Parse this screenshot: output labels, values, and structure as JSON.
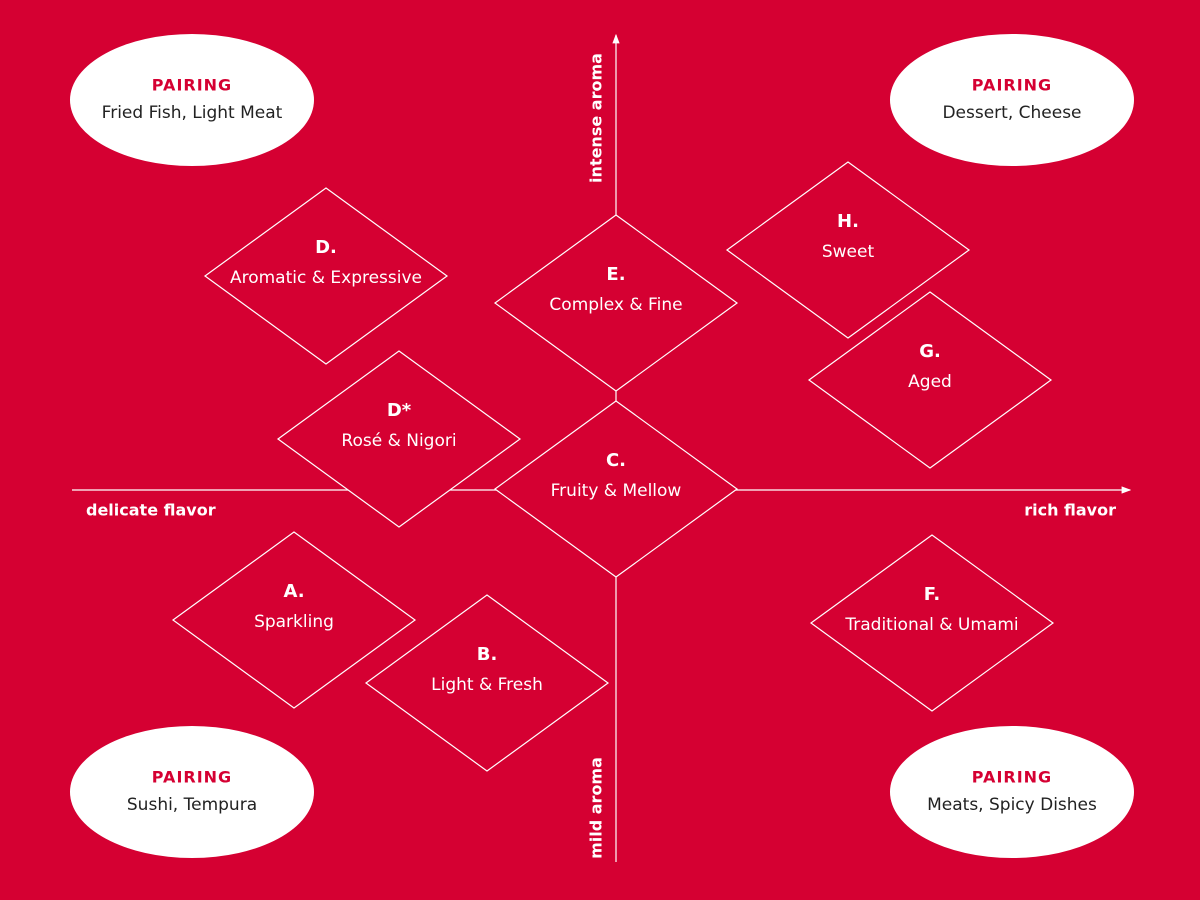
{
  "axes": {
    "top": "intense aroma",
    "bottom": "mild aroma",
    "left": "delicate flavor",
    "right": "rich flavor"
  },
  "pairings": [
    {
      "heading": "PAIRING",
      "foods": "Fried Fish, Light Meat"
    },
    {
      "heading": "PAIRING",
      "foods": "Dessert, Cheese"
    },
    {
      "heading": "PAIRING",
      "foods": "Sushi, Tempura"
    },
    {
      "heading": "PAIRING",
      "foods": "Meats, Spicy Dishes"
    }
  ],
  "categories": [
    {
      "letter": "D.",
      "label": "Aromatic & Expressive"
    },
    {
      "letter": "E.",
      "label": "Complex & Fine"
    },
    {
      "letter": "H.",
      "label": "Sweet"
    },
    {
      "letter": "G.",
      "label": "Aged"
    },
    {
      "letter": "D*",
      "label": "Rosé & Nigori"
    },
    {
      "letter": "C.",
      "label": "Fruity & Mellow"
    },
    {
      "letter": "A.",
      "label": "Sparkling"
    },
    {
      "letter": "B.",
      "label": "Light & Fresh"
    },
    {
      "letter": "F.",
      "label": "Traditional & Umami"
    }
  ]
}
